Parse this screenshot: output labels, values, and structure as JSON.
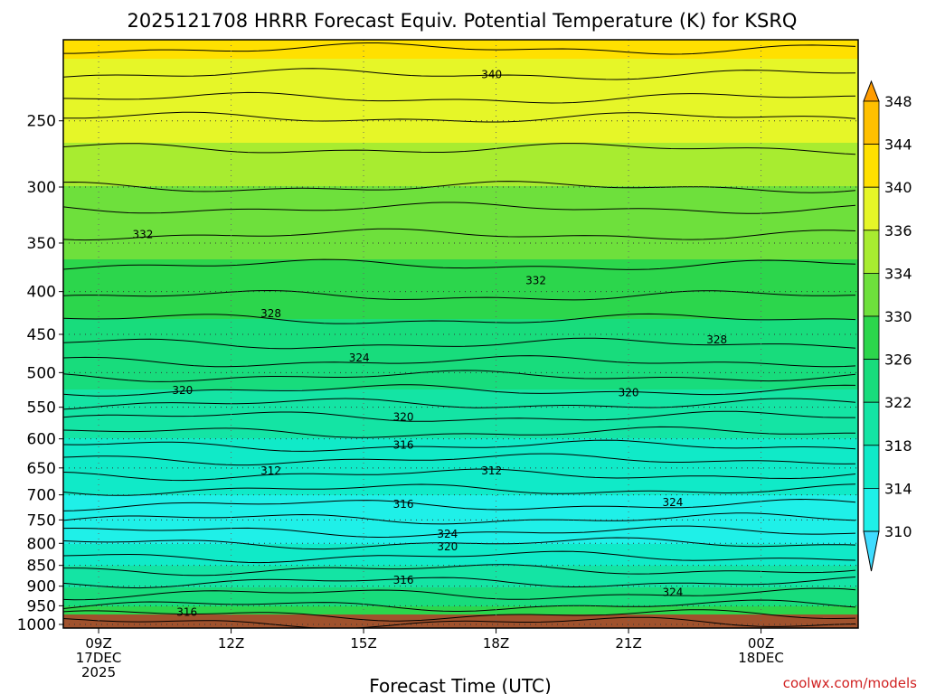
{
  "chart_data": {
    "type": "heatmap",
    "title": "2025121708 HRRR Forecast Equiv. Potential Temperature (K) for KSRQ",
    "xlabel": "Forecast Time (UTC)",
    "ylabel": "",
    "x_ticks": [
      {
        "hour": 9,
        "lines": [
          "09Z",
          "17DEC",
          "2025"
        ]
      },
      {
        "hour": 12,
        "lines": [
          "12Z"
        ]
      },
      {
        "hour": 15,
        "lines": [
          "15Z"
        ]
      },
      {
        "hour": 18,
        "lines": [
          "18Z"
        ]
      },
      {
        "hour": 21,
        "lines": [
          "21Z"
        ]
      },
      {
        "hour": 24,
        "lines": [
          "00Z",
          "18DEC"
        ]
      }
    ],
    "xlim": [
      8.2,
      26.2
    ],
    "y_ticks": [
      250,
      300,
      350,
      400,
      450,
      500,
      550,
      600,
      650,
      700,
      750,
      800,
      850,
      900,
      950,
      1000
    ],
    "ylim_hPa": [
      1010,
      200
    ],
    "y_scale": "log",
    "colorbar": {
      "units": "K",
      "ticks": [
        310,
        314,
        318,
        322,
        326,
        330,
        334,
        336,
        340,
        344,
        348
      ],
      "colors": [
        "#3fdcff",
        "#1ff0e8",
        "#10eac8",
        "#14e4a4",
        "#18dc7c",
        "#2cd64c",
        "#6ee03c",
        "#a8ec30",
        "#e6f628",
        "#ffe000",
        "#ffc000",
        "#ff9c00"
      ]
    },
    "theta_e_profile": [
      {
        "p": 1000,
        "theta_e": 330
      },
      {
        "p": 950,
        "theta_e": 326
      },
      {
        "p": 900,
        "theta_e": 322
      },
      {
        "p": 850,
        "theta_e": 318
      },
      {
        "p": 800,
        "theta_e": 314
      },
      {
        "p": 750,
        "theta_e": 313
      },
      {
        "p": 700,
        "theta_e": 314
      },
      {
        "p": 650,
        "theta_e": 316
      },
      {
        "p": 600,
        "theta_e": 318
      },
      {
        "p": 550,
        "theta_e": 321
      },
      {
        "p": 500,
        "theta_e": 323
      },
      {
        "p": 450,
        "theta_e": 325
      },
      {
        "p": 400,
        "theta_e": 328
      },
      {
        "p": 350,
        "theta_e": 331
      },
      {
        "p": 300,
        "theta_e": 334
      },
      {
        "p": 250,
        "theta_e": 337
      },
      {
        "p": 200,
        "theta_e": 341
      }
    ],
    "contour_labels": [
      {
        "text": "340",
        "hour": 17.9,
        "p": 220
      },
      {
        "text": "332",
        "hour": 10.0,
        "p": 342
      },
      {
        "text": "332",
        "hour": 18.9,
        "p": 388
      },
      {
        "text": "328",
        "hour": 12.9,
        "p": 425
      },
      {
        "text": "328",
        "hour": 23.0,
        "p": 457
      },
      {
        "text": "324",
        "hour": 14.9,
        "p": 480
      },
      {
        "text": "320",
        "hour": 10.9,
        "p": 525
      },
      {
        "text": "320",
        "hour": 21.0,
        "p": 528
      },
      {
        "text": "320",
        "hour": 15.9,
        "p": 565
      },
      {
        "text": "316",
        "hour": 15.9,
        "p": 610
      },
      {
        "text": "312",
        "hour": 12.9,
        "p": 655
      },
      {
        "text": "312",
        "hour": 17.9,
        "p": 655
      },
      {
        "text": "316",
        "hour": 15.9,
        "p": 718
      },
      {
        "text": "324",
        "hour": 22.0,
        "p": 715
      },
      {
        "text": "324",
        "hour": 16.9,
        "p": 780
      },
      {
        "text": "320",
        "hour": 16.9,
        "p": 807
      },
      {
        "text": "316",
        "hour": 15.9,
        "p": 885
      },
      {
        "text": "324",
        "hour": 22.0,
        "p": 915
      },
      {
        "text": "316",
        "hour": 11.0,
        "p": 967
      }
    ],
    "grid": true,
    "legend": "colorbar-right"
  },
  "credit": "coolwx.com/models"
}
